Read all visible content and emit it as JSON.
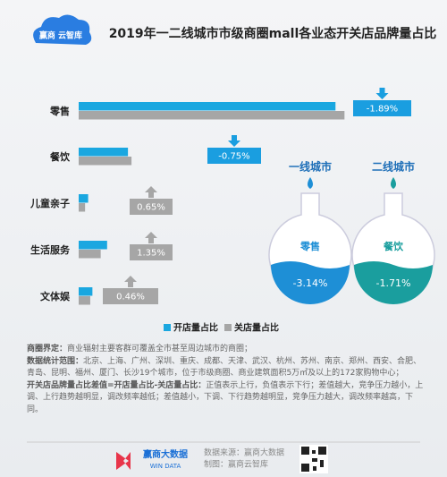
{
  "header": {
    "logo": "赢商 云智库"
  },
  "chart_data": {
    "type": "bar",
    "orientation": "horizontal",
    "title": "2019年一二线城市市级商圈mall各业态开关店品牌量占比",
    "categories": [
      "零售",
      "餐饮",
      "儿童亲子",
      "生活服务",
      "文体娱"
    ],
    "series": [
      {
        "name": "开店量占比",
        "color": "#1aa7e0",
        "values": [
          54.2,
          10.4,
          2.0,
          6.0,
          2.9
        ]
      },
      {
        "name": "关店量占比",
        "color": "#a6a6a6",
        "values": [
          56.1,
          11.15,
          1.35,
          4.65,
          2.44
        ]
      }
    ],
    "xlim": [
      0,
      60
    ],
    "legend": "bottom",
    "differences": {
      "values": [
        -1.89,
        -0.75,
        0.65,
        1.35,
        0.46
      ],
      "value_labels": [
        "-1.89%",
        "-0.75%",
        "0.65%",
        "1.35%",
        "0.46%"
      ]
    },
    "flasks": [
      {
        "title": "一线城市",
        "category": "零售",
        "value": -3.14,
        "value_label": "-3.14%",
        "color": "#1e8fd6"
      },
      {
        "title": "二线城市",
        "category": "餐饮",
        "value": -1.71,
        "value_label": "-1.71%",
        "color": "#1a9e9e"
      }
    ]
  },
  "notes": [
    {
      "label": "商圈界定：",
      "text": "商业辐射主要客群可覆盖全市甚至周边城市的商圈；"
    },
    {
      "label": "数据统计范围：",
      "text": "北京、上海、广州、深圳、重庆、成都、天津、武汉、杭州、苏州、南京、郑州、西安、合肥、青岛、昆明、福州、厦门、长沙19个城市，位于市级商圈、商业建筑面积5万㎡及以上的172家购物中心；"
    },
    {
      "label": "开关店品牌量占比差值=开店量占比-关店量占比：",
      "text": "正值表示上行，负值表示下行；差值越大，竞争压力越小，上调、上行趋势越明显，调改频率越低；差值越小，下调、下行趋势越明显，竞争压力越大，调改频率越高，下同。"
    }
  ],
  "footer": {
    "brand": "赢商大数据",
    "brand_en": "WIN DATA",
    "source": "数据来源：赢商大数据",
    "maker": "制图：赢商云智库"
  }
}
